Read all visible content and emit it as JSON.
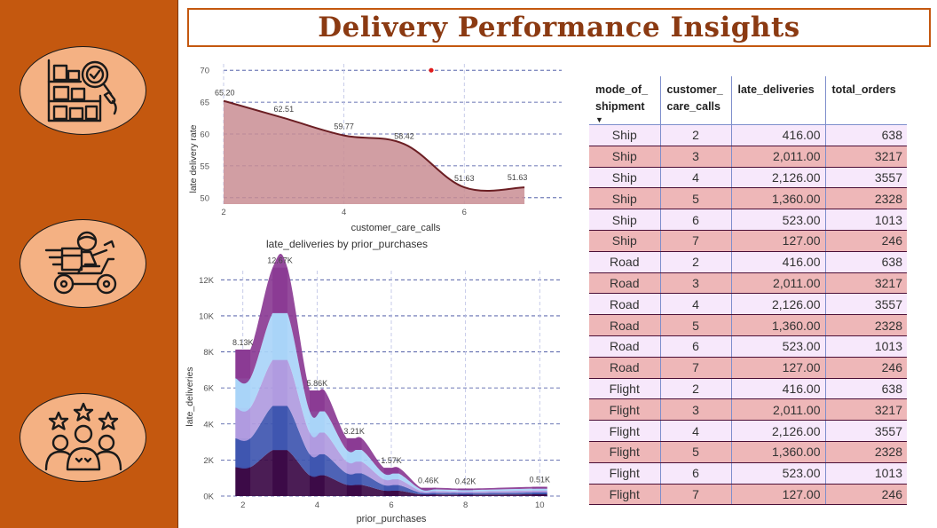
{
  "title": "Delivery Performance Insights",
  "colors": {
    "sidebar": "#c4580f",
    "icon_fill": "#f4b183",
    "title_text": "#8b3a12",
    "area_fill": "#c98d93",
    "area_line": "#6b1e23",
    "row_odd": "#f7e8fb",
    "row_even": "#eeb7b8"
  },
  "sidebar": {
    "icons": [
      "warehouse-search-icon",
      "delivery-scooter-icon",
      "customer-rating-icon"
    ]
  },
  "chart_data": [
    {
      "type": "area",
      "title": "",
      "xlabel": "customer_care_calls",
      "ylabel": "late delivery rate",
      "x": [
        2,
        3,
        4,
        5,
        6,
        7
      ],
      "values": [
        65.2,
        62.51,
        59.77,
        58.42,
        51.63,
        51.63
      ],
      "data_labels": [
        "65.20",
        "62.51",
        "59.77",
        "58.42",
        "51.63",
        "51.63"
      ],
      "xticks": [
        "2",
        "4",
        "6"
      ],
      "yticks": [
        "50",
        "55",
        "60",
        "65",
        "70"
      ],
      "ylim": [
        49,
        71
      ],
      "xlim": [
        2,
        7.5
      ],
      "grid": true,
      "outlier_point": {
        "x": 5.45,
        "y": 70
      }
    },
    {
      "type": "area",
      "title": "late_deliveries by prior_purchases",
      "xlabel": "prior_purchases",
      "ylabel": "late_deliveries",
      "x": [
        2,
        3,
        4,
        5,
        6,
        7,
        8,
        10
      ],
      "totals": [
        8130,
        12670,
        5860,
        3210,
        1570,
        460,
        420,
        510
      ],
      "data_labels": [
        "8.13K",
        "12.67K",
        "5.86K",
        "3.21K",
        "1.57K",
        "0.46K",
        "0.42K",
        "0.51K"
      ],
      "series": [
        {
          "color": "#3c0a47",
          "values": [
            1600,
            2550,
            1150,
            620,
            300,
            90,
            80,
            100
          ]
        },
        {
          "color": "#3f56b0",
          "values": [
            1600,
            2450,
            1170,
            640,
            310,
            90,
            85,
            100
          ]
        },
        {
          "color": "#b09be0",
          "values": [
            1700,
            2550,
            1200,
            650,
            320,
            95,
            85,
            105
          ]
        },
        {
          "color": "#a9d4f8",
          "values": [
            1630,
            2600,
            1180,
            650,
            320,
            95,
            85,
            105
          ]
        },
        {
          "color": "#8b3b94",
          "values": [
            1600,
            2520,
            1160,
            650,
            320,
            90,
            85,
            100
          ]
        }
      ],
      "xticks": [
        "2",
        "4",
        "6",
        "8",
        "10"
      ],
      "yticks": [
        "0K",
        "2K",
        "4K",
        "6K",
        "8K",
        "10K",
        "12K"
      ],
      "ylim": [
        0,
        13000
      ],
      "grid": true
    }
  ],
  "table": {
    "headers": [
      "mode_of_ shipment",
      "customer_ care_calls",
      "late_deliveries",
      "total_orders"
    ],
    "rows": [
      [
        "Ship",
        "2",
        "416.00",
        "638"
      ],
      [
        "Ship",
        "3",
        "2,011.00",
        "3217"
      ],
      [
        "Ship",
        "4",
        "2,126.00",
        "3557"
      ],
      [
        "Ship",
        "5",
        "1,360.00",
        "2328"
      ],
      [
        "Ship",
        "6",
        "523.00",
        "1013"
      ],
      [
        "Ship",
        "7",
        "127.00",
        "246"
      ],
      [
        "Road",
        "2",
        "416.00",
        "638"
      ],
      [
        "Road",
        "3",
        "2,011.00",
        "3217"
      ],
      [
        "Road",
        "4",
        "2,126.00",
        "3557"
      ],
      [
        "Road",
        "5",
        "1,360.00",
        "2328"
      ],
      [
        "Road",
        "6",
        "523.00",
        "1013"
      ],
      [
        "Road",
        "7",
        "127.00",
        "246"
      ],
      [
        "Flight",
        "2",
        "416.00",
        "638"
      ],
      [
        "Flight",
        "3",
        "2,011.00",
        "3217"
      ],
      [
        "Flight",
        "4",
        "2,126.00",
        "3557"
      ],
      [
        "Flight",
        "5",
        "1,360.00",
        "2328"
      ],
      [
        "Flight",
        "6",
        "523.00",
        "1013"
      ],
      [
        "Flight",
        "7",
        "127.00",
        "246"
      ]
    ]
  }
}
